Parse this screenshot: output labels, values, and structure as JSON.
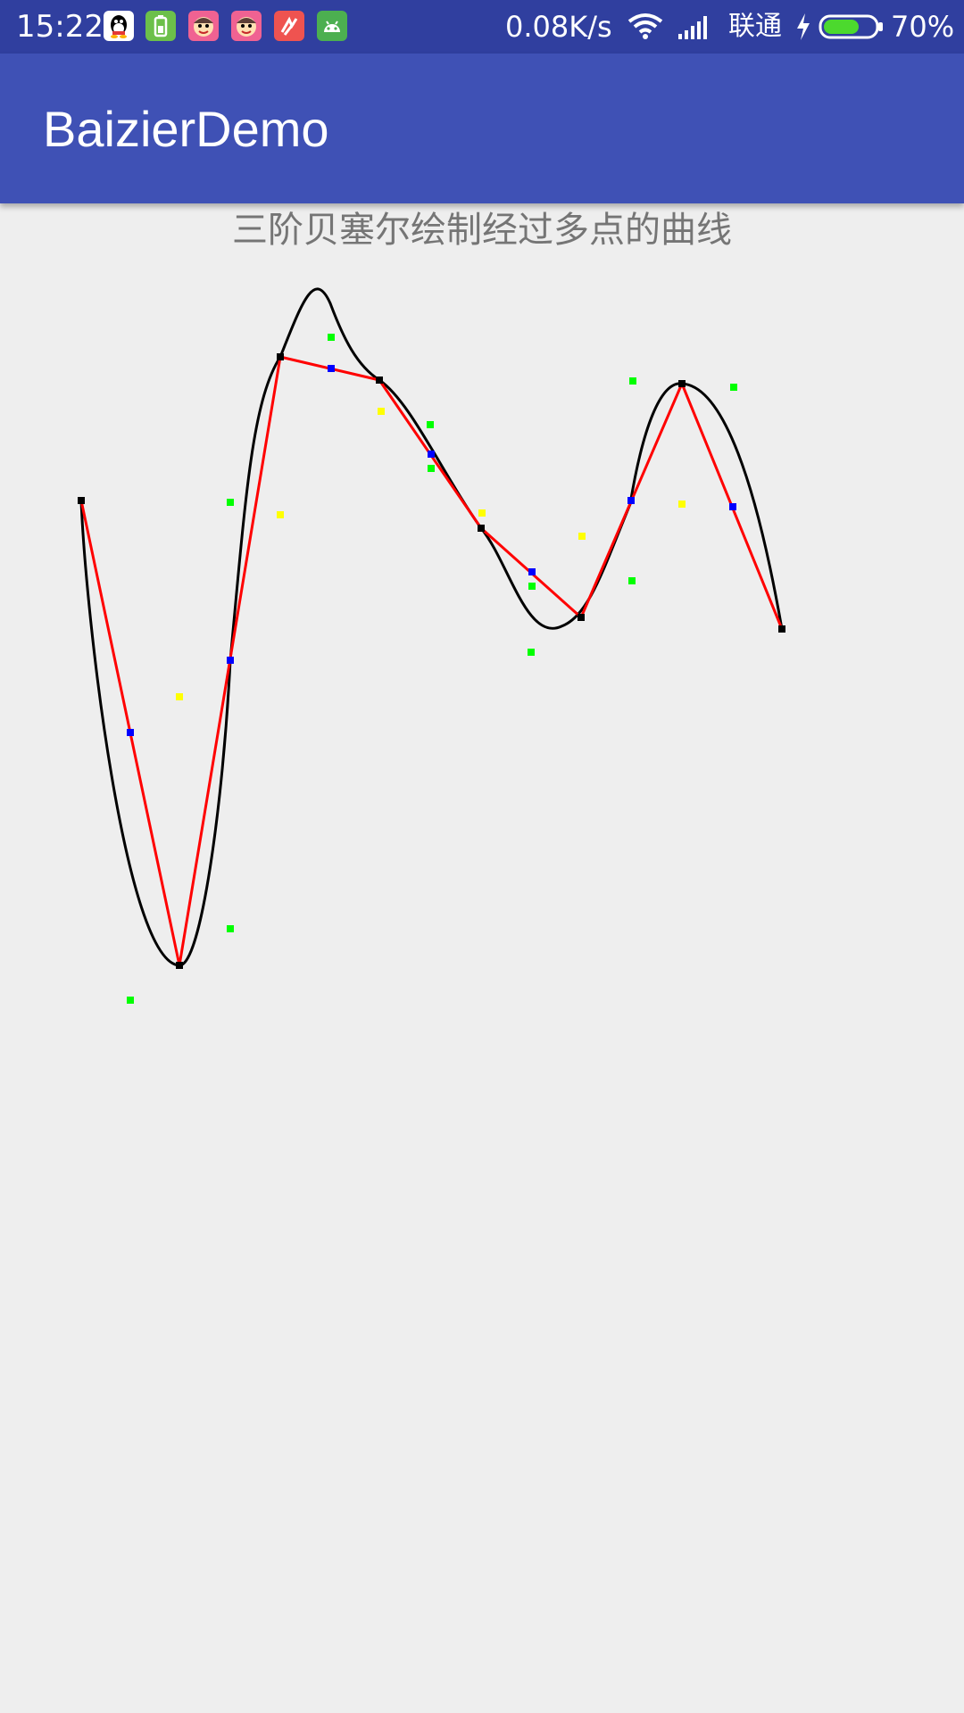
{
  "status_bar": {
    "time": "15:22",
    "net_speed": "0.08K/s",
    "carrier": "联通",
    "battery_percent": "70%",
    "battery_level": 0.7,
    "app_icons": [
      "qq-icon",
      "battery-app-icon",
      "face-app-icon",
      "face-app-icon-2",
      "fitness-app-icon",
      "android-app-icon"
    ],
    "status_icons": [
      "wifi-icon",
      "signal-icon",
      "charging-icon",
      "battery-icon"
    ]
  },
  "app_bar": {
    "title": "BaizierDemo"
  },
  "content": {
    "title": "三阶贝塞尔绘制经过多点的曲线"
  },
  "colors": {
    "status_bar": "#303F9F",
    "app_bar": "#3F51B5",
    "background": "#EEEEEE",
    "curve": "#000000",
    "polyline": "#FF0000",
    "data_point": "#000000",
    "midpoint": "#0000FF",
    "midpoint_of_midpoints": "#FFFF00",
    "control_point": "#00FF00"
  }
}
